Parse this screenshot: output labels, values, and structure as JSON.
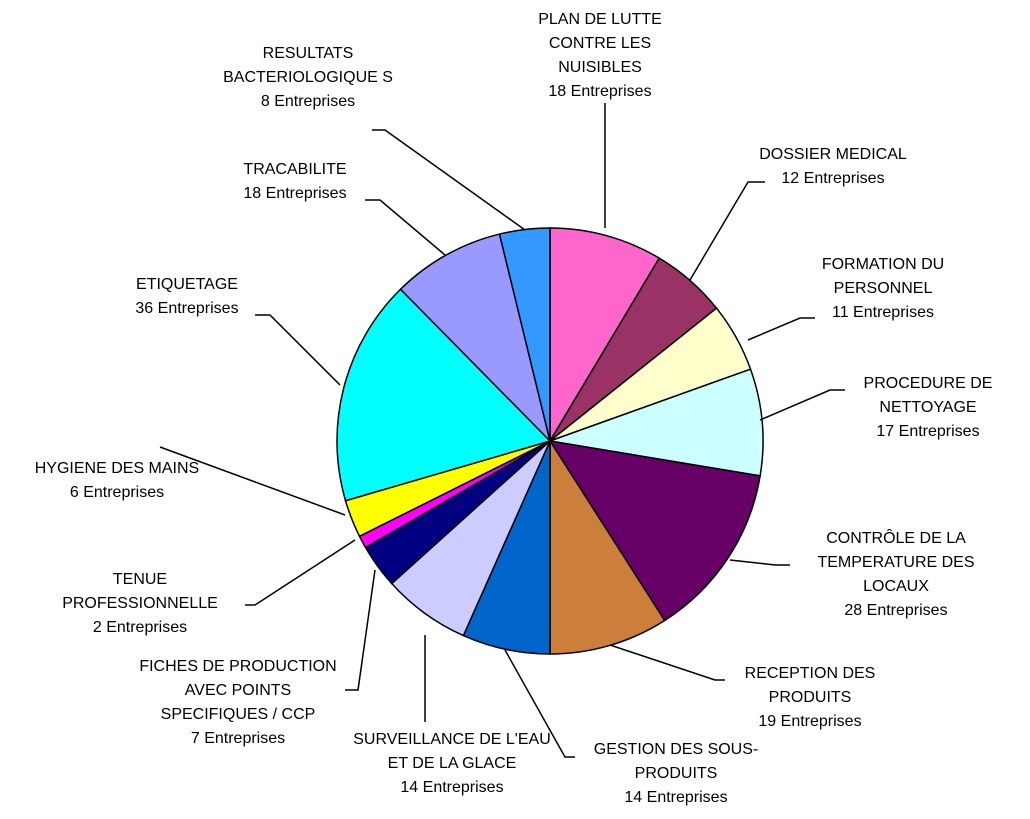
{
  "chart_data": {
    "type": "pie",
    "categories": [
      "PLAN DE LUTTE CONTRE LES NUISIBLES",
      "DOSSIER MEDICAL",
      "FORMATION DU PERSONNEL",
      "PROCEDURE DE NETTOYAGE",
      "CONTRÔLE DE LA TEMPERATURE DES LOCAUX",
      "RECEPTION DES PRODUITS",
      "GESTION DES SOUS-PRODUITS",
      "SURVEILLANCE DE L'EAU ET DE LA GLACE",
      "FICHES DE PRODUCTION AVEC POINTS SPECIFIQUES / CCP",
      "TENUE PROFESSIONNELLE",
      "HYGIENE DES MAINS",
      "ETIQUETAGE",
      "TRACABILITE",
      "RESULTATS BACTERIOLOGIQUE S"
    ],
    "values": [
      18,
      12,
      11,
      17,
      28,
      19,
      14,
      14,
      7,
      2,
      6,
      36,
      18,
      8
    ],
    "value_labels": [
      "18 Entreprises",
      "12 Entreprises",
      "11 Entreprises",
      "17 Entreprises",
      "28 Entreprises",
      "19 Entreprises",
      "14 Entreprises",
      "14 Entreprises",
      "7 Entreprises",
      "2 Entreprises",
      "6 Entreprises",
      "36 Entreprises",
      "18 Entreprises",
      "8 Entreprises"
    ],
    "colors": [
      "#ff66cc",
      "#993366",
      "#ffffcc",
      "#ccffff",
      "#660066",
      "#cc7f3a",
      "#0066cc",
      "#ccccff",
      "#000080",
      "#ff00ff",
      "#ffff00",
      "#00ffff",
      "#9999ff",
      "#3399ff"
    ]
  }
}
